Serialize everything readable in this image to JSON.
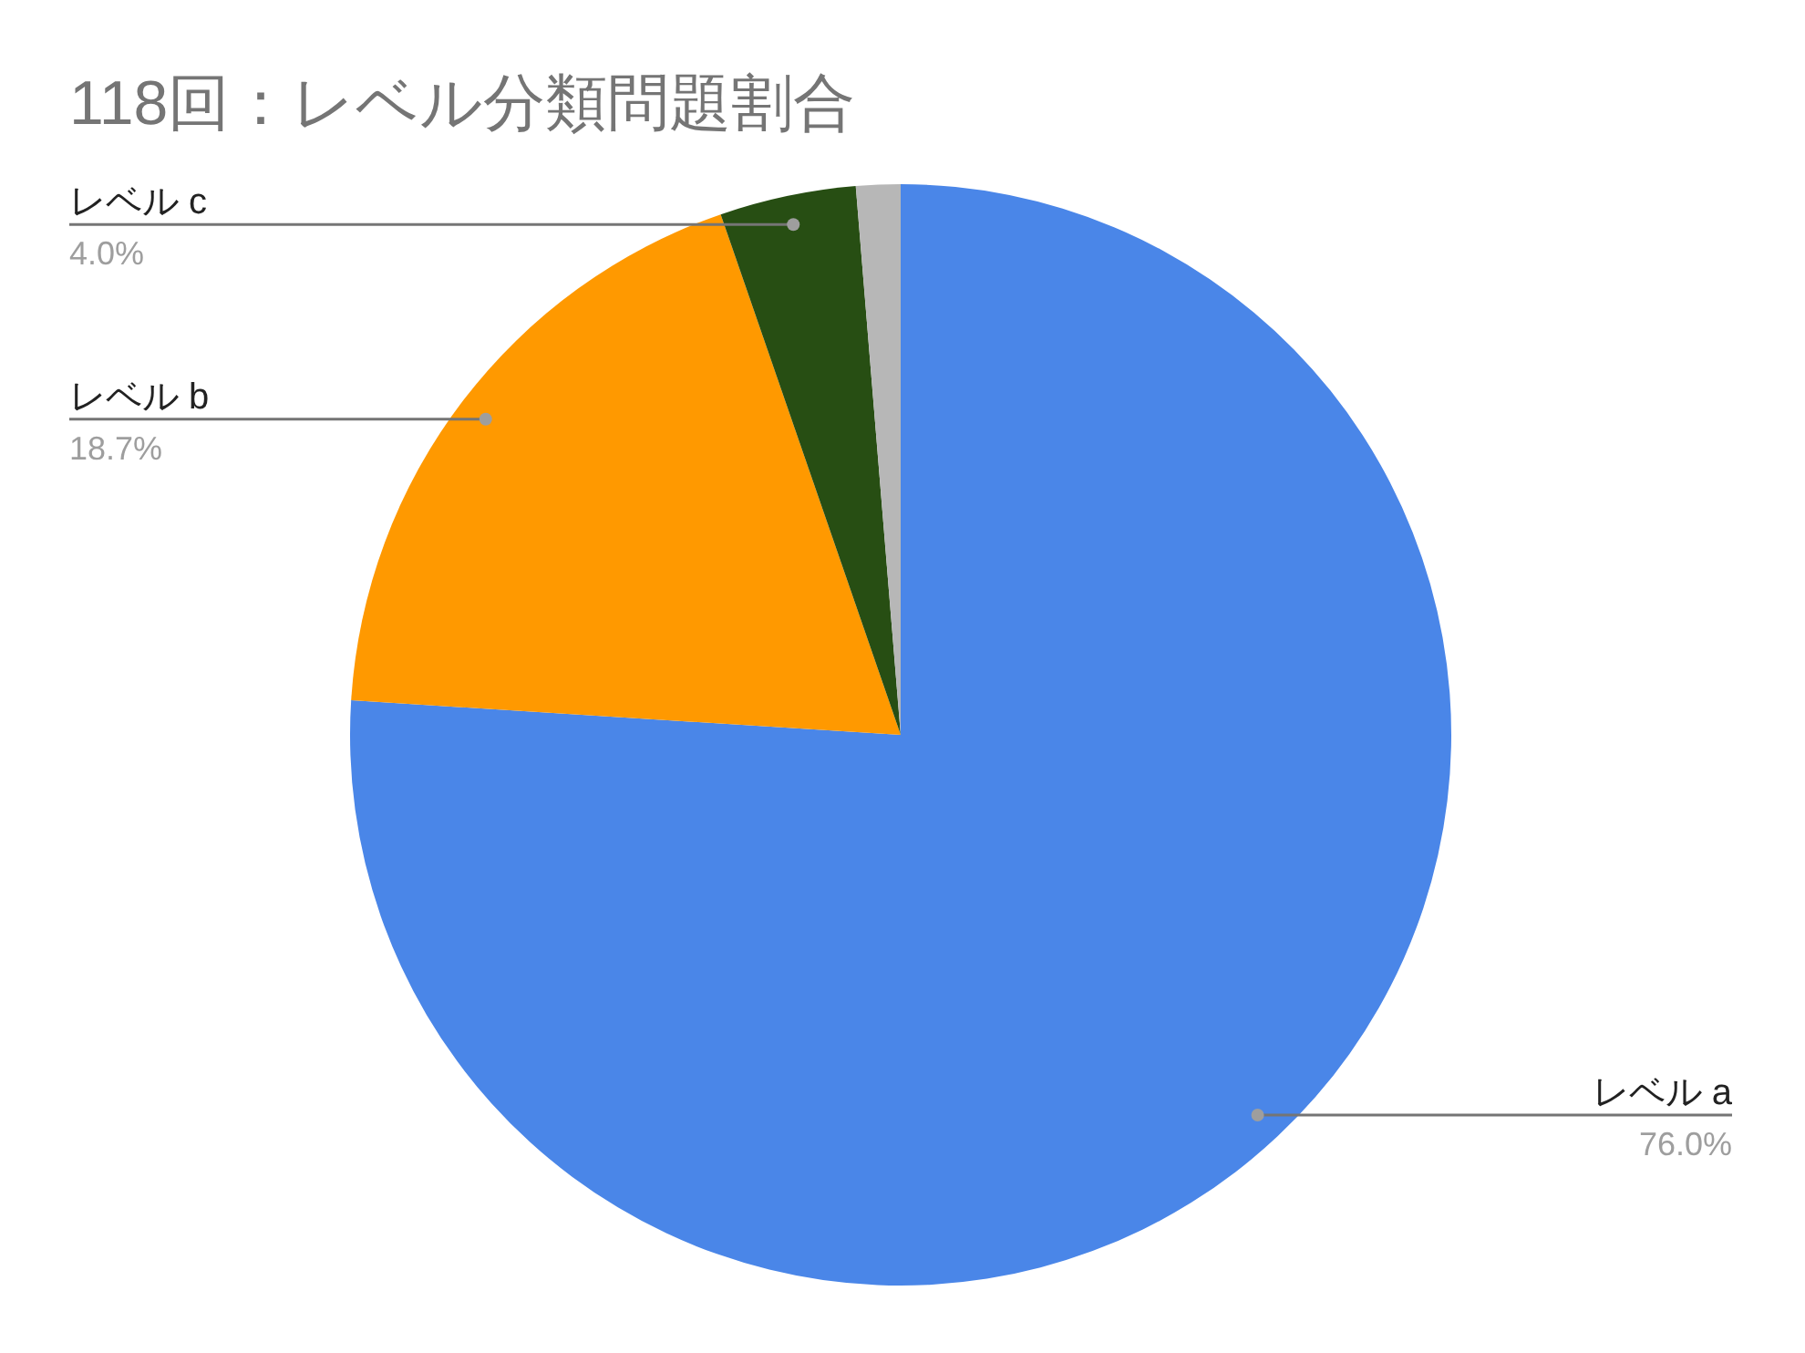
{
  "chart_data": {
    "type": "pie",
    "title": "118回：レベル分類問題割合",
    "categories": [
      "レベル a",
      "レベル b",
      "レベル c",
      null
    ],
    "values": [
      76.0,
      18.7,
      4.0,
      1.3
    ],
    "value_labels": [
      "76.0%",
      "18.7%",
      "4.0%",
      null
    ],
    "colors": [
      "#4a86e8",
      "#ff9900",
      "#274e13",
      "#b7b7b7"
    ],
    "legend": false
  }
}
